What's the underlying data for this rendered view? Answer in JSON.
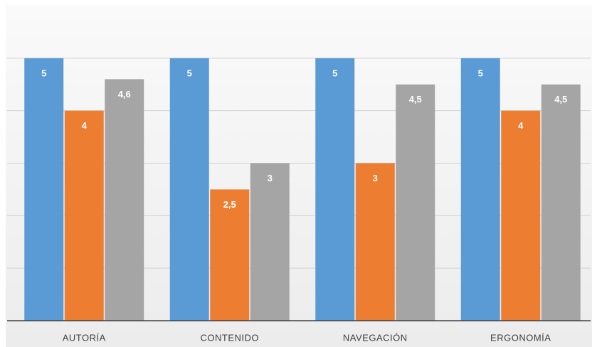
{
  "chart_data": {
    "type": "bar",
    "categories": [
      "AUTORÍA",
      "CONTENIDO",
      "NAVEGACIÓN",
      "ERGONOMÍA"
    ],
    "series": [
      {
        "color": "#5b9bd5",
        "values": [
          5,
          5,
          5,
          5
        ],
        "value_labels": [
          "5",
          "5",
          "5",
          "5"
        ]
      },
      {
        "color": "#ed7d31",
        "values": [
          4,
          2.5,
          3,
          4
        ],
        "value_labels": [
          "4",
          "2,5",
          "3",
          "4"
        ]
      },
      {
        "color": "#a5a5a5",
        "values": [
          4.6,
          3,
          4.5,
          4.5
        ],
        "value_labels": [
          "4,6",
          "3",
          "4,5",
          "4,5"
        ]
      }
    ],
    "ylim": [
      0,
      6
    ],
    "yticks": [
      1,
      2,
      3,
      4,
      5
    ],
    "grid": true
  }
}
